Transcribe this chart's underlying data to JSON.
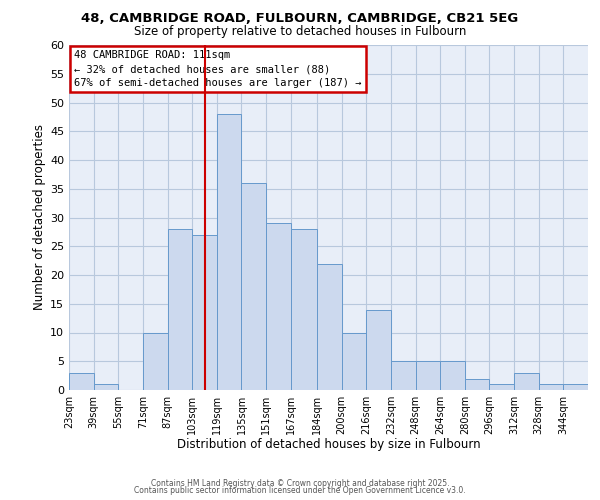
{
  "title": "48, CAMBRIDGE ROAD, FULBOURN, CAMBRIDGE, CB21 5EG",
  "subtitle": "Size of property relative to detached houses in Fulbourn",
  "xlabel": "Distribution of detached houses by size in Fulbourn",
  "ylabel": "Number of detached properties",
  "bar_color": "#ccd9ee",
  "bar_edge_color": "#6699cc",
  "background_color": "#ffffff",
  "plot_bg_color": "#e8eef8",
  "grid_color": "#b8c8dd",
  "bin_labels": [
    "23sqm",
    "39sqm",
    "55sqm",
    "71sqm",
    "87sqm",
    "103sqm",
    "119sqm",
    "135sqm",
    "151sqm",
    "167sqm",
    "184sqm",
    "200sqm",
    "216sqm",
    "232sqm",
    "248sqm",
    "264sqm",
    "280sqm",
    "296sqm",
    "312sqm",
    "328sqm",
    "344sqm"
  ],
  "bin_edges": [
    23,
    39,
    55,
    71,
    87,
    103,
    119,
    135,
    151,
    167,
    184,
    200,
    216,
    232,
    248,
    264,
    280,
    296,
    312,
    328,
    344,
    360
  ],
  "values": [
    3,
    1,
    0,
    10,
    28,
    27,
    48,
    36,
    29,
    28,
    22,
    10,
    14,
    5,
    5,
    5,
    2,
    1,
    3,
    1,
    1
  ],
  "ylim": [
    0,
    60
  ],
  "yticks": [
    0,
    5,
    10,
    15,
    20,
    25,
    30,
    35,
    40,
    45,
    50,
    55,
    60
  ],
  "property_line_x": 111,
  "property_line_color": "#cc0000",
  "annotation_title": "48 CAMBRIDGE ROAD: 111sqm",
  "annotation_line1": "← 32% of detached houses are smaller (88)",
  "annotation_line2": "67% of semi-detached houses are larger (187) →",
  "annotation_box_color": "#cc0000",
  "footer1": "Contains HM Land Registry data © Crown copyright and database right 2025.",
  "footer2": "Contains public sector information licensed under the Open Government Licence v3.0."
}
